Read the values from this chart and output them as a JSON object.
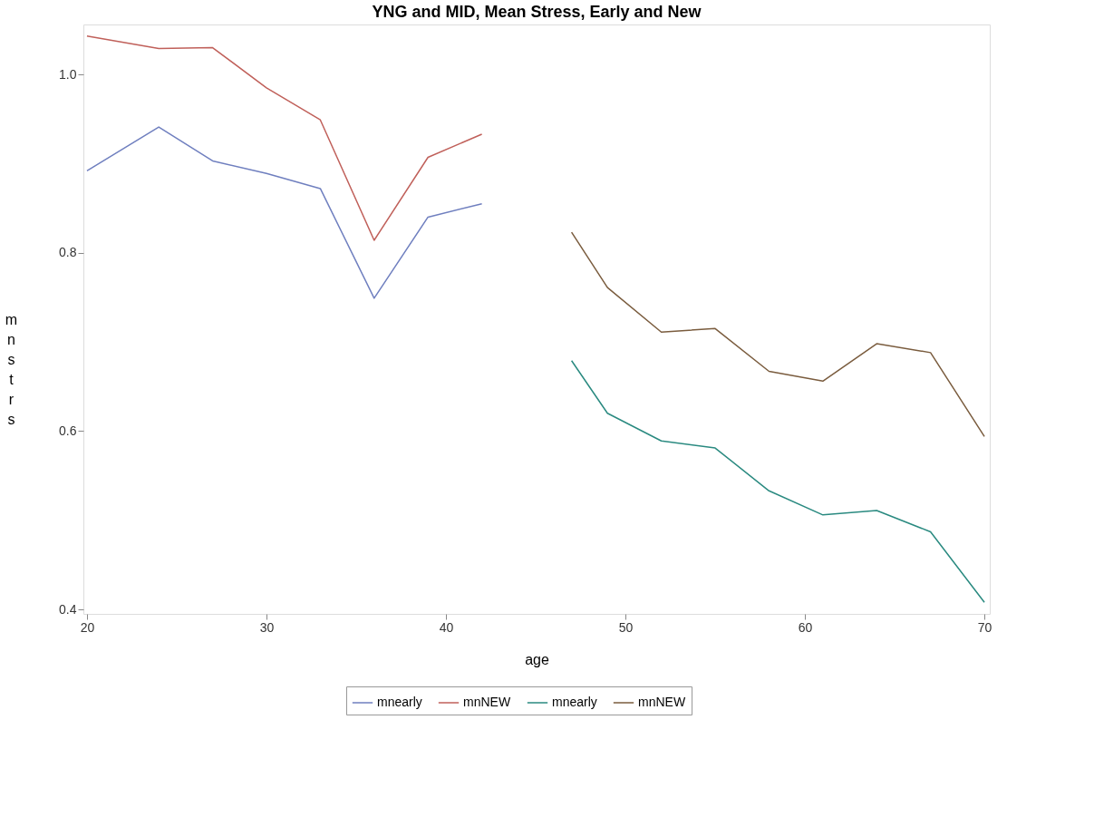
{
  "chart_data": {
    "type": "line",
    "title": "YNG and MID, Mean Stress, Early and New",
    "xlabel": "age",
    "ylabel": "mnstrs",
    "xlim": [
      19.8,
      70.3
    ],
    "xticks": [
      20,
      30,
      40,
      50,
      60,
      70
    ],
    "ylim": [
      0.395,
      1.056
    ],
    "yticks": [
      0.4,
      0.6,
      0.8,
      {
        "value": 1,
        "label": "1.0"
      }
    ],
    "grid": false,
    "legend": "bottom",
    "marker": "none",
    "line_style": "solid",
    "series": [
      {
        "name": "mnearly",
        "color": "#6f7fbf",
        "x": [
          20,
          24,
          27,
          30,
          33,
          36,
          39,
          42
        ],
        "values": [
          0.892,
          0.941,
          0.903,
          0.889,
          0.872,
          0.749,
          0.84,
          0.855
        ]
      },
      {
        "name": "mnNEW",
        "color": "#c0605a",
        "x": [
          20,
          24,
          27,
          30,
          33,
          36,
          39,
          42
        ],
        "values": [
          1.043,
          1.029,
          1.03,
          0.985,
          0.949,
          0.814,
          0.907,
          0.933
        ]
      },
      {
        "name": "mnearly",
        "color": "#2a8a80",
        "x": [
          47,
          49,
          52,
          55,
          58,
          61,
          64,
          67,
          70
        ],
        "values": [
          0.679,
          0.62,
          0.589,
          0.581,
          0.533,
          0.506,
          0.511,
          0.487,
          0.408
        ]
      },
      {
        "name": "mnNEW",
        "color": "#7a5c3e",
        "x": [
          47,
          49,
          52,
          55,
          58,
          61,
          64,
          67,
          70
        ],
        "values": [
          0.823,
          0.761,
          0.711,
          0.715,
          0.667,
          0.656,
          0.698,
          0.688,
          0.594
        ]
      }
    ]
  }
}
